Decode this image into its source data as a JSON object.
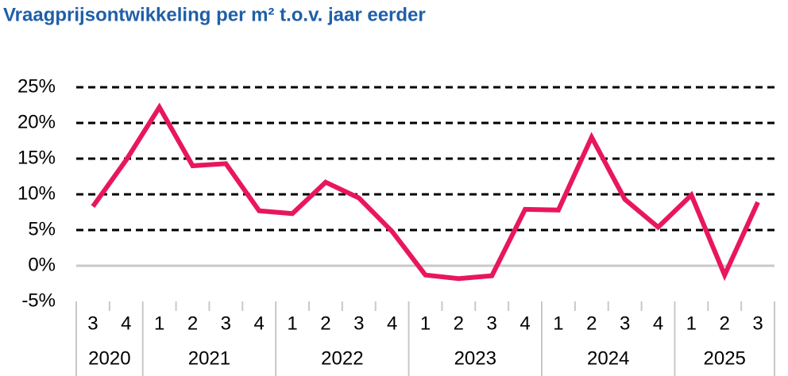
{
  "chart_data": {
    "type": "line",
    "title": "Vraagprijsontwikkeling per m² t.o.v. jaar eerder",
    "groups": [
      {
        "label": "2020",
        "quarters": [
          "3",
          "4"
        ]
      },
      {
        "label": "2021",
        "quarters": [
          "1",
          "2",
          "3",
          "4"
        ]
      },
      {
        "label": "2022",
        "quarters": [
          "1",
          "2",
          "3",
          "4"
        ]
      },
      {
        "label": "2023",
        "quarters": [
          "1",
          "2",
          "3",
          "4"
        ]
      },
      {
        "label": "2024",
        "quarters": [
          "1",
          "2",
          "3",
          "4"
        ]
      },
      {
        "label": "2025",
        "quarters": [
          "1",
          "2",
          "3"
        ]
      }
    ],
    "values": [
      8.3,
      14.8,
      22.2,
      14.0,
      14.3,
      7.7,
      7.3,
      11.7,
      9.5,
      4.8,
      -1.3,
      -1.8,
      -1.4,
      7.9,
      7.8,
      18.0,
      9.3,
      5.4,
      9.9,
      -1.3,
      8.9
    ],
    "color": "#e8175d",
    "ylim": [
      -5,
      25
    ],
    "yticks": [
      {
        "value": -5,
        "label": "-5%"
      },
      {
        "value": 0,
        "label": "0%"
      },
      {
        "value": 5,
        "label": "5%"
      },
      {
        "value": 10,
        "label": "10%"
      },
      {
        "value": 15,
        "label": "15%"
      },
      {
        "value": 20,
        "label": "20%"
      },
      {
        "value": 25,
        "label": "25%"
      }
    ],
    "grid": true
  }
}
